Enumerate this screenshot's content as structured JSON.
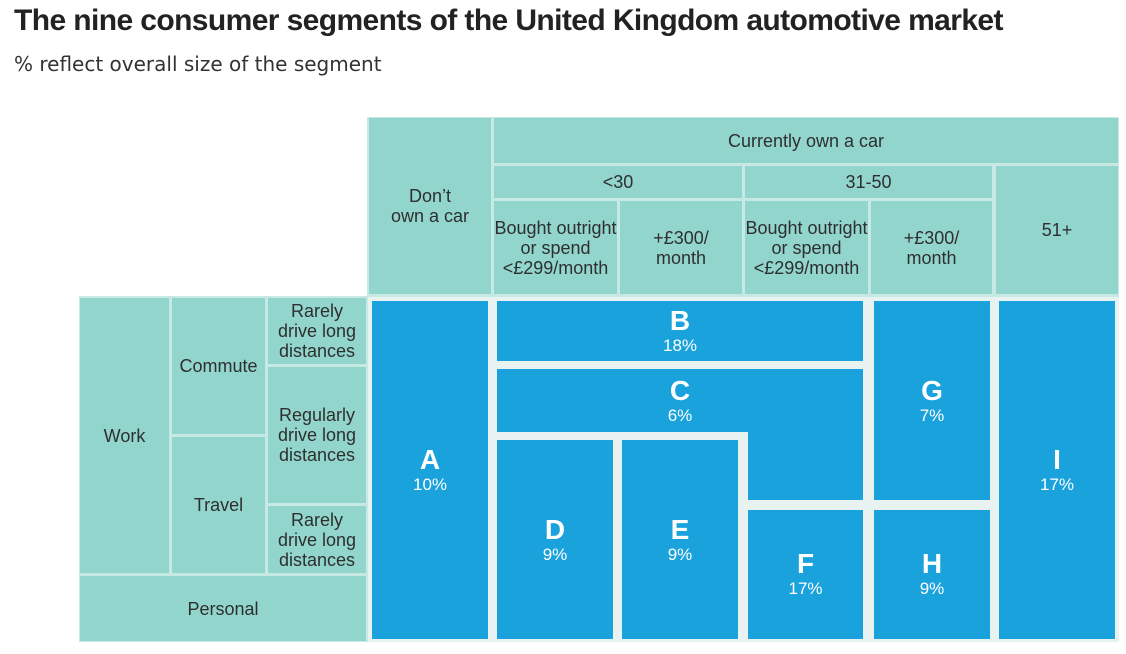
{
  "title": "The nine consumer segments of the United Kingdom automotive market",
  "subtitle": "% reflect overall size of the segment",
  "columns": {
    "dont_own": [
      "Don’t",
      "own a car"
    ],
    "currently_own": "Currently own a car",
    "age_under30": "<30",
    "age_31_50": "31-50",
    "age_51plus": "51+",
    "bought_outright_1": [
      "Bought outright",
      "or spend",
      "<£299/month"
    ],
    "plus300_1": [
      "+£300/",
      "month"
    ],
    "bought_outright_2": [
      "Bought outright",
      "or spend",
      "<£299/month"
    ],
    "plus300_2": [
      "+£300/",
      "month"
    ]
  },
  "rows": {
    "work": "Work",
    "commute": "Commute",
    "travel": "Travel",
    "personal": "Personal",
    "rarely_1": [
      "Rarely",
      "drive long",
      "distances"
    ],
    "regularly": [
      "Regularly",
      "drive long",
      "distances"
    ],
    "rarely_2": [
      "Rarely",
      "drive long",
      "distances"
    ]
  },
  "colors": {
    "header": "#91d5cc",
    "segment": "#19a2dc"
  },
  "segments": [
    {
      "id": "A",
      "pct": "10%"
    },
    {
      "id": "B",
      "pct": "18%"
    },
    {
      "id": "C",
      "pct": "6%"
    },
    {
      "id": "D",
      "pct": "9%"
    },
    {
      "id": "E",
      "pct": "9%"
    },
    {
      "id": "F",
      "pct": "17%"
    },
    {
      "id": "G",
      "pct": "7%"
    },
    {
      "id": "H",
      "pct": "9%"
    },
    {
      "id": "I",
      "pct": "17%"
    }
  ]
}
